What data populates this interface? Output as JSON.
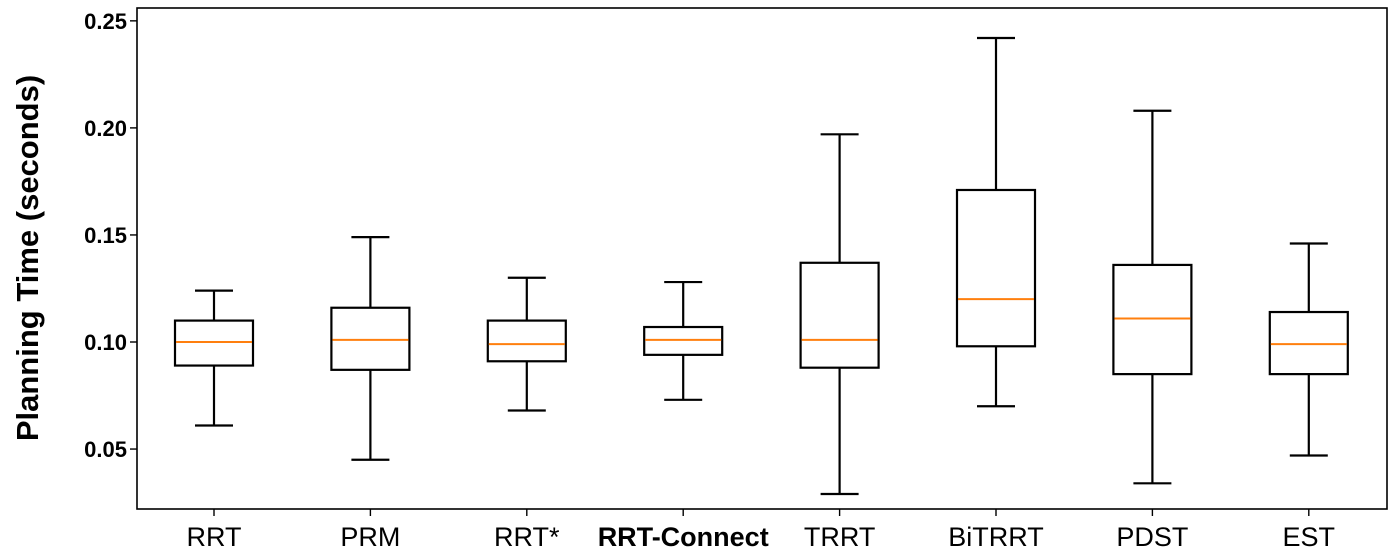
{
  "chart_data": {
    "type": "boxplot",
    "title": "",
    "xlabel": "",
    "ylabel": "Planning Time (seconds)",
    "ylim": [
      0.022,
      0.256
    ],
    "yticks": [
      "0.05",
      "0.10",
      "0.15",
      "0.20",
      "0.25"
    ],
    "grid": false,
    "median_color": "#ff7f0e",
    "box_color": "#000000",
    "categories": [
      {
        "label": "RRT",
        "bold": false
      },
      {
        "label": "PRM",
        "bold": false
      },
      {
        "label": "RRT*",
        "bold": false
      },
      {
        "label": "RRT-Connect",
        "bold": true
      },
      {
        "label": "TRRT",
        "bold": false
      },
      {
        "label": "BiTRRT",
        "bold": false
      },
      {
        "label": "PDST",
        "bold": false
      },
      {
        "label": "EST",
        "bold": false
      }
    ],
    "boxes": [
      {
        "whislo": 0.061,
        "q1": 0.089,
        "med": 0.1,
        "q3": 0.11,
        "whishi": 0.124
      },
      {
        "whislo": 0.045,
        "q1": 0.087,
        "med": 0.101,
        "q3": 0.116,
        "whishi": 0.149
      },
      {
        "whislo": 0.068,
        "q1": 0.091,
        "med": 0.099,
        "q3": 0.11,
        "whishi": 0.13
      },
      {
        "whislo": 0.073,
        "q1": 0.094,
        "med": 0.101,
        "q3": 0.107,
        "whishi": 0.128
      },
      {
        "whislo": 0.029,
        "q1": 0.088,
        "med": 0.101,
        "q3": 0.137,
        "whishi": 0.197
      },
      {
        "whislo": 0.07,
        "q1": 0.098,
        "med": 0.12,
        "q3": 0.171,
        "whishi": 0.242
      },
      {
        "whislo": 0.034,
        "q1": 0.085,
        "med": 0.111,
        "q3": 0.136,
        "whishi": 0.208
      },
      {
        "whislo": 0.047,
        "q1": 0.085,
        "med": 0.099,
        "q3": 0.114,
        "whishi": 0.146
      }
    ]
  }
}
